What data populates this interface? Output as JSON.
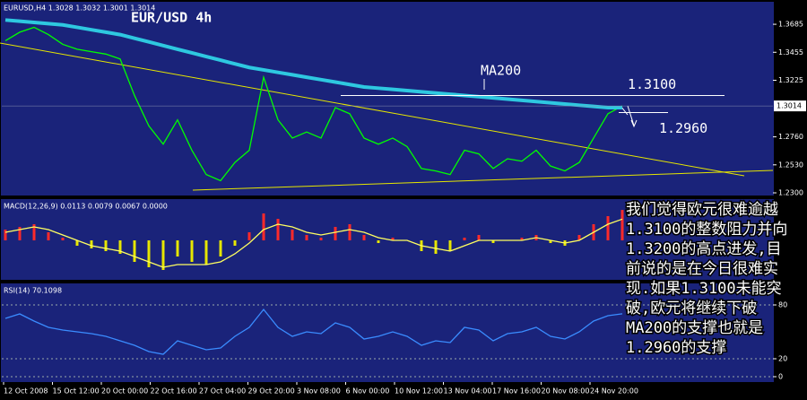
{
  "chart_data": [
    {
      "type": "line",
      "title": "EUR/USD 4h",
      "header": "EURUSD,H4  1.3028 1.3032 1.3001 1.3014",
      "ylim": [
        1.2278,
        1.3855
      ],
      "yticks": [
        {
          "value": 1.23,
          "label": "1.2300"
        },
        {
          "value": 1.253,
          "label": "1.2530"
        },
        {
          "value": 1.276,
          "label": "1.2760"
        },
        {
          "value": 1.3225,
          "label": "1.3225"
        },
        {
          "value": 1.3455,
          "label": "1.3455"
        },
        {
          "value": 1.3685,
          "label": "1.3685"
        }
      ],
      "last_price": {
        "value": 1.3014,
        "label": "1.3014"
      },
      "series": [
        {
          "color": "#00ff00",
          "values": [
            1.355,
            1.362,
            1.366,
            1.36,
            1.352,
            1.348,
            1.346,
            1.344,
            1.34,
            1.31,
            1.285,
            1.27,
            1.29,
            1.265,
            1.245,
            1.24,
            1.255,
            1.265,
            1.325,
            1.29,
            1.275,
            1.28,
            1.275,
            1.3,
            1.295,
            1.275,
            1.27,
            1.275,
            1.268,
            1.25,
            1.248,
            1.245,
            1.265,
            1.262,
            1.25,
            1.258,
            1.256,
            1.265,
            1.252,
            1.248,
            1.255,
            1.275,
            1.295,
            1.3014
          ]
        },
        {
          "name": "MA200",
          "color": "#2ec8e0",
          "values": [
            1.372,
            1.371,
            1.37,
            1.369,
            1.368,
            1.366,
            1.364,
            1.362,
            1.36,
            1.357,
            1.354,
            1.351,
            1.348,
            1.345,
            1.342,
            1.339,
            1.336,
            1.333,
            1.331,
            1.329,
            1.327,
            1.325,
            1.323,
            1.321,
            1.319,
            1.317,
            1.316,
            1.315,
            1.314,
            1.313,
            1.312,
            1.311,
            1.31,
            1.309,
            1.308,
            1.307,
            1.306,
            1.305,
            1.304,
            1.303,
            1.302,
            1.301,
            1.3,
            1.3
          ]
        }
      ],
      "levels": [
        {
          "value": 1.31,
          "label": "1.3100"
        },
        {
          "value": 1.296,
          "label": "1.2960"
        }
      ],
      "annotation_lines": [
        "我们觉得欧元很难逾越",
        "1.3100的整数阻力并向",
        "1.3200的高点进发,目",
        "前说的是在今日很难实",
        "现.如果1.3100未能突",
        "破,欧元将继续下破",
        "MA200的支撑也就是",
        "1.2960的支撑"
      ]
    },
    {
      "type": "bar",
      "header": "MACD(12,26,9) 0.0113 0.0079 0.0067 0.0000",
      "ylim": [
        -0.015,
        0.015
      ],
      "positive_color": "#ff2a2a",
      "negative_color": "#e6e600",
      "values": [
        0.004,
        0.005,
        0.006,
        0.003,
        0.001,
        -0.002,
        -0.003,
        -0.004,
        -0.005,
        -0.008,
        -0.01,
        -0.011,
        -0.006,
        -0.008,
        -0.009,
        -0.006,
        -0.002,
        0.003,
        0.01,
        0.008,
        0.004,
        0.002,
        0.001,
        0.005,
        0.006,
        0.002,
        -0.001,
        0.001,
        0,
        -0.004,
        -0.005,
        -0.004,
        0.001,
        0.002,
        -0.001,
        0,
        0.001,
        0.002,
        -0.001,
        -0.002,
        0.002,
        0.006,
        0.009,
        0.0113
      ],
      "series": [
        {
          "color": "#ffff60",
          "values": [
            0.003,
            0.004,
            0.005,
            0.004,
            0.002,
            0,
            -0.002,
            -0.003,
            -0.004,
            -0.006,
            -0.008,
            -0.01,
            -0.009,
            -0.009,
            -0.009,
            -0.008,
            -0.005,
            -0.001,
            0.004,
            0.006,
            0.005,
            0.003,
            0.002,
            0.003,
            0.004,
            0.003,
            0.001,
            0,
            0,
            -0.002,
            -0.003,
            -0.004,
            -0.002,
            0,
            0,
            0,
            0,
            0.001,
            0,
            -0.001,
            0,
            0.003,
            0.006,
            0.0079
          ]
        }
      ]
    },
    {
      "type": "line",
      "header": "RSI(14) 70.1098",
      "ylim": [
        0,
        100
      ],
      "yticks": [
        0,
        20,
        80
      ],
      "series": [
        {
          "color": "#3a8cff",
          "values": [
            65,
            70,
            62,
            55,
            52,
            50,
            48,
            45,
            40,
            35,
            28,
            25,
            40,
            35,
            30,
            32,
            45,
            55,
            75,
            55,
            45,
            50,
            48,
            60,
            55,
            42,
            45,
            50,
            45,
            35,
            40,
            38,
            55,
            52,
            40,
            48,
            50,
            55,
            45,
            42,
            50,
            62,
            68,
            70.1098
          ]
        }
      ]
    }
  ],
  "x_axis": {
    "labels": [
      "12 Oct 2008",
      "15 Oct 12:00",
      "20 Oct 00:00",
      "22 Oct 16:00",
      "27 Oct 04:00",
      "29 Oct 20:00",
      "3 Nov 08:00",
      "6 Nov 00:00",
      "10 Nov 12:00",
      "13 Nov 04:00",
      "17 Nov 16:00",
      "20 Nov 08:00",
      "24 Nov 20:00"
    ]
  }
}
